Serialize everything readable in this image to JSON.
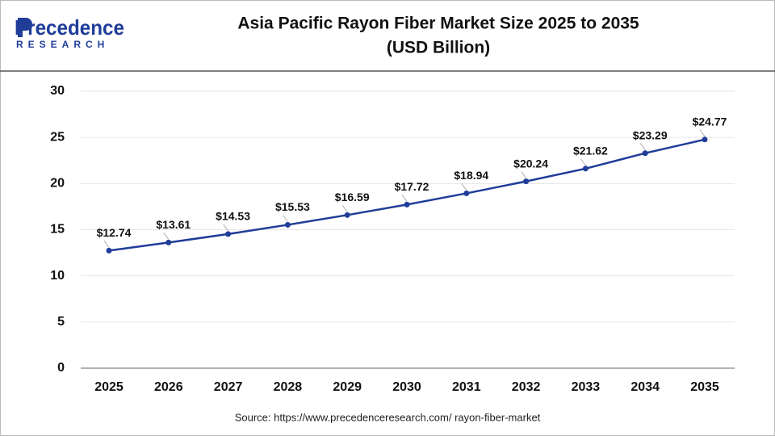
{
  "logo": {
    "name": "Precedence",
    "tagline": "RESEARCH"
  },
  "chart_data": {
    "type": "line",
    "title": [
      "Asia Pacific Rayon Fiber Market Size 2025 to 2035",
      "(USD Billion)"
    ],
    "categories": [
      "2025",
      "2026",
      "2027",
      "2028",
      "2029",
      "2030",
      "2031",
      "2032",
      "2033",
      "2034",
      "2035"
    ],
    "series": [
      {
        "name": "Market Size",
        "color": "#1f3d99",
        "values": [
          12.74,
          13.61,
          14.53,
          15.53,
          16.59,
          17.72,
          18.94,
          20.24,
          21.62,
          23.29,
          24.77
        ],
        "value_labels": [
          "$12.74",
          "$13.61",
          "$14.53",
          "$15.53",
          "$16.59",
          "$17.72",
          "$18.94",
          "$20.24",
          "$21.62",
          "$23.29",
          "$24.77"
        ]
      }
    ],
    "ylim": [
      0,
      30
    ],
    "yticks": [
      0,
      5,
      10,
      15,
      20,
      25,
      30
    ],
    "grid": true,
    "source": "Source: https://www.precedenceresearch.com/ rayon-fiber-market"
  }
}
